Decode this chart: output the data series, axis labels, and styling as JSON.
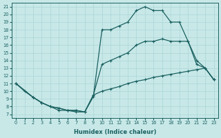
{
  "xlabel": "Humidex (Indice chaleur)",
  "xlim": [
    -0.5,
    23.5
  ],
  "ylim": [
    6.5,
    21.5
  ],
  "xticks": [
    0,
    1,
    2,
    3,
    4,
    5,
    6,
    7,
    8,
    9,
    10,
    11,
    12,
    13,
    14,
    15,
    16,
    17,
    18,
    19,
    20,
    21,
    22,
    23
  ],
  "yticks": [
    7,
    8,
    9,
    10,
    11,
    12,
    13,
    14,
    15,
    16,
    17,
    18,
    19,
    20,
    21
  ],
  "background_color": "#c8e8e8",
  "grid_color": "#aad4d4",
  "line_color": "#1a6060",
  "line_width": 0.9,
  "marker_size": 2.0,
  "curve1_x": [
    0,
    1,
    2,
    3,
    4,
    5,
    6,
    7,
    8,
    9,
    10,
    11,
    12,
    13,
    14,
    15,
    16,
    17,
    18,
    19,
    20,
    21,
    22,
    23
  ],
  "curve1_y": [
    11,
    10,
    9.2,
    8.5,
    8.0,
    7.5,
    7.5,
    7.3,
    7.3,
    9.3,
    18.0,
    18.0,
    18.5,
    19.0,
    20.5,
    21.0,
    20.5,
    20.5,
    19.0,
    19.0,
    16.5,
    14.0,
    13.0,
    11.5
  ],
  "curve2_x": [
    0,
    2,
    3,
    4,
    5,
    6,
    7,
    8,
    9,
    10,
    11,
    12,
    13,
    14,
    15,
    16,
    17,
    18,
    19,
    20,
    21,
    22,
    23
  ],
  "curve2_y": [
    11,
    9.2,
    8.5,
    8.0,
    7.8,
    7.5,
    7.5,
    7.3,
    9.5,
    13.5,
    14.0,
    14.5,
    15.0,
    16.0,
    16.5,
    16.5,
    16.8,
    16.5,
    16.5,
    16.5,
    13.5,
    13.0,
    11.5
  ],
  "curve3_x": [
    0,
    2,
    3,
    4,
    5,
    6,
    7,
    8,
    9,
    10,
    11,
    12,
    13,
    14,
    15,
    16,
    17,
    18,
    19,
    20,
    21,
    22,
    23
  ],
  "curve3_y": [
    11,
    9.2,
    8.5,
    8.0,
    7.8,
    7.5,
    7.5,
    7.3,
    9.5,
    10.0,
    10.3,
    10.6,
    11.0,
    11.3,
    11.5,
    11.8,
    12.0,
    12.2,
    12.4,
    12.6,
    12.8,
    13.0,
    11.5
  ]
}
